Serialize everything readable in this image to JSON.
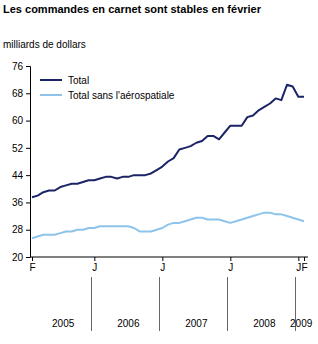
{
  "chart_data": {
    "type": "line",
    "title": "Les commandes en carnet sont stables en février",
    "y_label": "milliards de dollars",
    "categories": [
      "F",
      null,
      null,
      null,
      null,
      null,
      null,
      null,
      null,
      null,
      null,
      "J",
      null,
      null,
      null,
      null,
      null,
      null,
      null,
      null,
      null,
      null,
      null,
      "J",
      null,
      null,
      null,
      null,
      null,
      null,
      null,
      null,
      null,
      null,
      null,
      "J",
      null,
      null,
      null,
      null,
      null,
      null,
      null,
      null,
      null,
      null,
      null,
      "J",
      "F"
    ],
    "x_groups": [
      "2005",
      "2006",
      "2007",
      "2008",
      "2009"
    ],
    "series": [
      {
        "name": "Total",
        "color": "#1b2466",
        "values": [
          37.5,
          38,
          39,
          39.5,
          39.5,
          40.5,
          41,
          41.5,
          41.5,
          42,
          42.5,
          42.5,
          43,
          43.5,
          43.5,
          43,
          43.5,
          43.5,
          44,
          44,
          44,
          44.5,
          45.5,
          46.5,
          48,
          49,
          51.5,
          52,
          52.5,
          53.5,
          54,
          55.5,
          55.5,
          54.5,
          56.5,
          58.5,
          58.5,
          58.5,
          61,
          61.5,
          63,
          64,
          65,
          66.5,
          66,
          70.5,
          70,
          67,
          67
        ]
      },
      {
        "name": "Total sans l'aérospatiale",
        "color": "#8ec3ea",
        "values": [
          25.5,
          26,
          26.5,
          26.5,
          26.5,
          27,
          27.5,
          27.5,
          28,
          28,
          28.5,
          28.5,
          29,
          29,
          29,
          29,
          29,
          29,
          28.5,
          27.5,
          27.5,
          27.5,
          28,
          28.5,
          29.5,
          30,
          30,
          30.5,
          31,
          31.5,
          31.5,
          31,
          31,
          31,
          30.5,
          30,
          30.5,
          31,
          31.5,
          32,
          32.5,
          33,
          33,
          32.5,
          32.5,
          32,
          31.5,
          31,
          30.5
        ]
      }
    ],
    "ylim": [
      20,
      76
    ],
    "yticks": [
      20,
      28,
      36,
      44,
      52,
      60,
      68,
      76
    ],
    "grid": false,
    "legend": "upper left"
  }
}
